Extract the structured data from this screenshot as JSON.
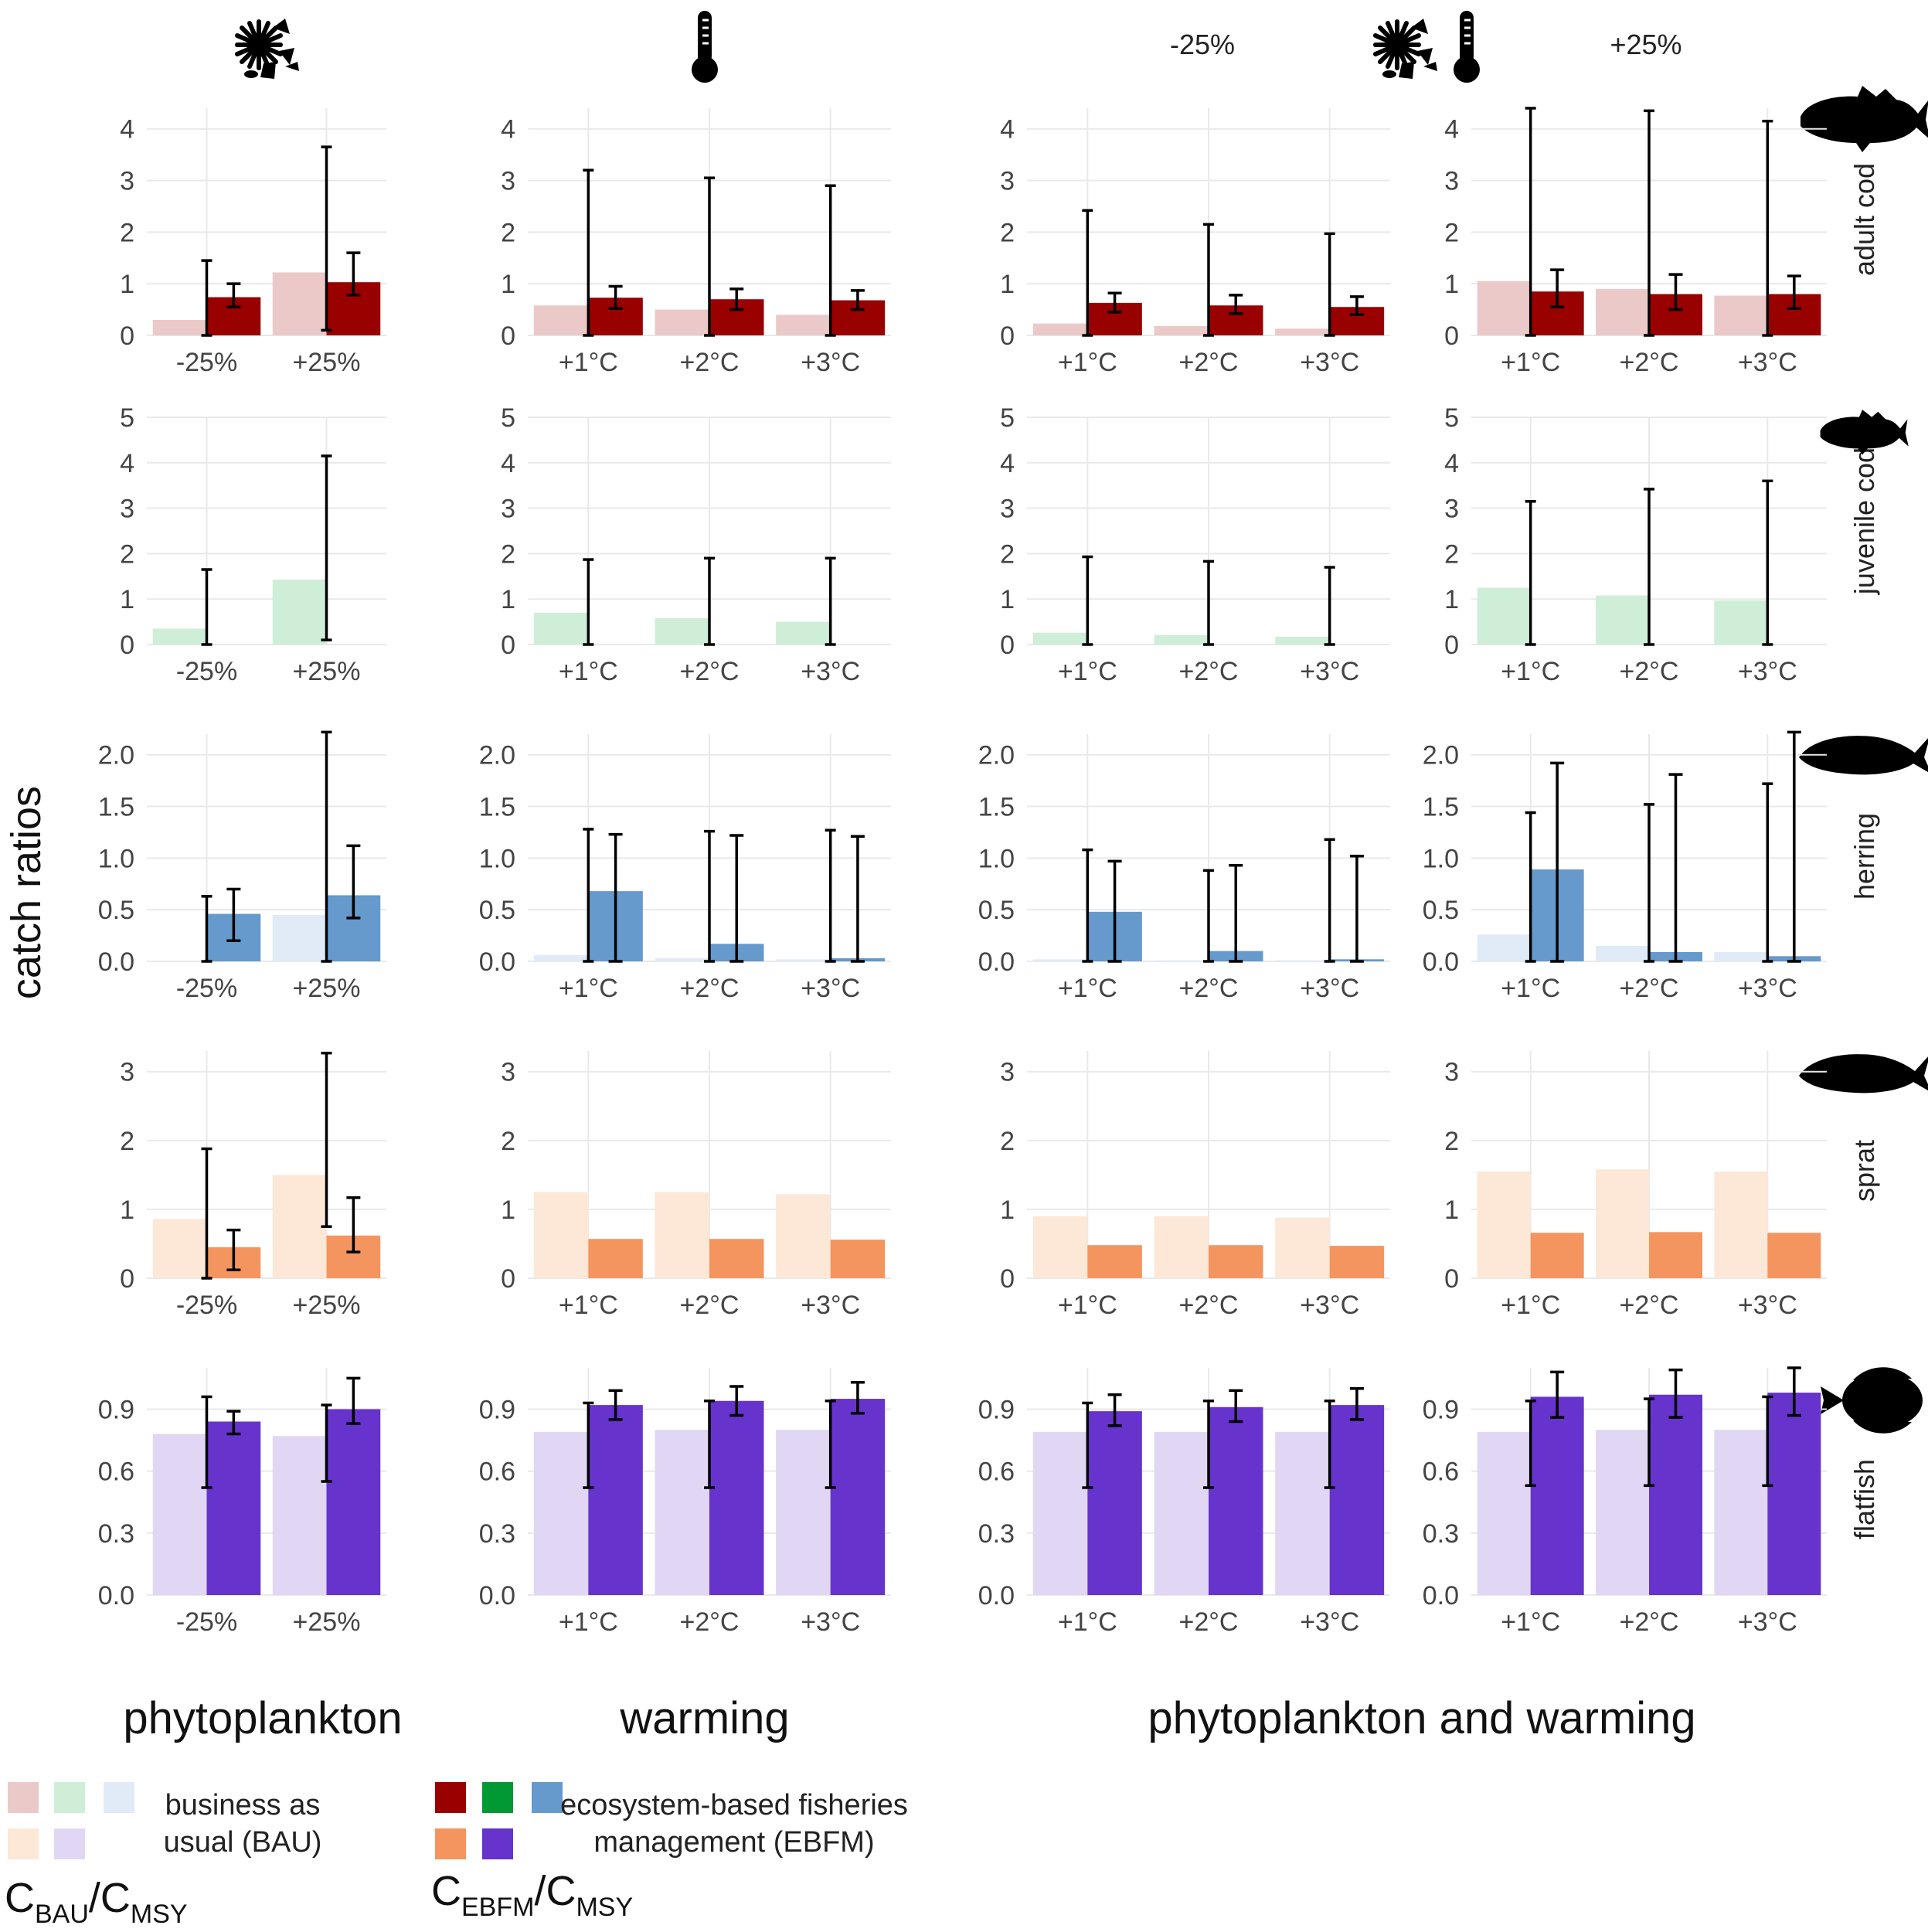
{
  "y_axis_label": "catch ratios",
  "top_labels": {
    "minus": "-25%",
    "plus": "+25%"
  },
  "icons": {
    "phytoplankton": "phytoplankton-icon",
    "warming": "thermometer-icon",
    "combined": [
      "phytoplankton-icon",
      "thermometer-icon"
    ]
  },
  "group_labels": [
    "phytoplankton",
    "warming",
    "phytoplankton and warming"
  ],
  "legend": {
    "bau_text": [
      "business as",
      "usual (BAU)"
    ],
    "ebfm_text": [
      "ecosystem-based fisheries",
      "management (EBFM)"
    ],
    "bau_ratio": {
      "c": "C",
      "sub1": "BAU",
      "slash": "/C",
      "sub2": "MSY"
    },
    "ebfm_ratio": {
      "c": "C",
      "sub1": "EBFM",
      "slash": "/C",
      "sub2": "MSY"
    },
    "bau_colors": [
      "#ecc9c9",
      "#cfeed8",
      "#e0ebf7",
      "#fde7d7",
      "#e1d7f4"
    ],
    "ebfm_colors": [
      "#990000",
      "#009933",
      "#6699cc",
      "#f4955f",
      "#6633cc"
    ]
  },
  "chart_data": {
    "type": "bar",
    "columns": [
      {
        "name": "phytoplankton",
        "categories": [
          "-25%",
          "+25%"
        ]
      },
      {
        "name": "warming",
        "categories": [
          "+1°C",
          "+2°C",
          "+3°C"
        ]
      },
      {
        "name": "phytoplankton and warming -25%",
        "categories": [
          "+1°C",
          "+2°C",
          "+3°C"
        ]
      },
      {
        "name": "phytoplankton and warming +25%",
        "categories": [
          "+1°C",
          "+2°C",
          "+3°C"
        ]
      }
    ],
    "rows": [
      {
        "species": "adult cod",
        "icon": "adult-cod-icon",
        "ylim": [
          0,
          4.4
        ],
        "ticks": [
          0,
          1,
          2,
          3,
          4
        ],
        "tick_labels": [
          "0",
          "1",
          "2",
          "3",
          "4"
        ],
        "bau_color": "#ecc9c9",
        "ebfm_color": "#990000",
        "panels": [
          {
            "bau": [
              0.3,
              1.22
            ],
            "bau_err": [
              [
                0,
                1.45
              ],
              [
                0.1,
                3.65
              ]
            ],
            "ebfm": [
              0.74,
              1.03
            ],
            "ebfm_err": [
              [
                0.55,
                1.0
              ],
              [
                0.78,
                1.6
              ]
            ]
          },
          {
            "bau": [
              0.58,
              0.5,
              0.4
            ],
            "bau_err": [
              [
                0,
                3.2
              ],
              [
                0,
                3.05
              ],
              [
                0,
                2.9
              ]
            ],
            "ebfm": [
              0.73,
              0.7,
              0.68
            ],
            "ebfm_err": [
              [
                0.52,
                0.95
              ],
              [
                0.5,
                0.9
              ],
              [
                0.5,
                0.87
              ]
            ]
          },
          {
            "bau": [
              0.23,
              0.18,
              0.13
            ],
            "bau_err": [
              [
                0,
                2.42
              ],
              [
                0,
                2.15
              ],
              [
                0,
                1.97
              ]
            ],
            "ebfm": [
              0.63,
              0.58,
              0.55
            ],
            "ebfm_err": [
              [
                0.45,
                0.82
              ],
              [
                0.42,
                0.78
              ],
              [
                0.4,
                0.75
              ]
            ]
          },
          {
            "bau": [
              1.05,
              0.9,
              0.77
            ],
            "bau_err": [
              [
                0,
                4.4
              ],
              [
                0,
                4.35
              ],
              [
                0,
                4.15
              ]
            ],
            "ebfm": [
              0.85,
              0.8,
              0.8
            ],
            "ebfm_err": [
              [
                0.55,
                1.27
              ],
              [
                0.5,
                1.18
              ],
              [
                0.52,
                1.15
              ]
            ]
          }
        ]
      },
      {
        "species": "juvenile cod",
        "icon": "juvenile-cod-icon",
        "ylim": [
          0,
          5.0
        ],
        "ticks": [
          0,
          1,
          2,
          3,
          4,
          5
        ],
        "tick_labels": [
          "0",
          "1",
          "2",
          "3",
          "4",
          "5"
        ],
        "bau_color": "#cfeed8",
        "ebfm_color": "#009933",
        "panels": [
          {
            "bau": [
              0.35,
              1.43
            ],
            "bau_err": [
              [
                0,
                1.65
              ],
              [
                0.1,
                4.15
              ]
            ],
            "ebfm": [
              0,
              0
            ],
            "ebfm_err": null
          },
          {
            "bau": [
              0.7,
              0.58,
              0.5
            ],
            "bau_err": [
              [
                0,
                1.87
              ],
              [
                0,
                1.9
              ],
              [
                0,
                1.9
              ]
            ],
            "ebfm": [
              0,
              0,
              0
            ],
            "ebfm_err": null
          },
          {
            "bau": [
              0.26,
              0.21,
              0.17
            ],
            "bau_err": [
              [
                0,
                1.93
              ],
              [
                0,
                1.83
              ],
              [
                0,
                1.7
              ]
            ],
            "ebfm": [
              0,
              0,
              0
            ],
            "ebfm_err": null
          },
          {
            "bau": [
              1.25,
              1.08,
              0.97
            ],
            "bau_err": [
              [
                0,
                3.15
              ],
              [
                0,
                3.42
              ],
              [
                0,
                3.6
              ]
            ],
            "ebfm": [
              0,
              0,
              0
            ],
            "ebfm_err": null
          }
        ]
      },
      {
        "species": "herring",
        "icon": "herring-icon",
        "ylim": [
          0,
          2.2
        ],
        "ticks": [
          0,
          0.5,
          1.0,
          1.5,
          2.0
        ],
        "tick_labels": [
          "0.0",
          "0.5",
          "1.0",
          "1.5",
          "2.0"
        ],
        "bau_color": "#e0ebf7",
        "ebfm_color": "#6699cc",
        "panels": [
          {
            "bau": [
              0.0,
              0.45
            ],
            "bau_err": [
              [
                0,
                0.63
              ],
              [
                0,
                2.22
              ]
            ],
            "ebfm": [
              0.46,
              0.64
            ],
            "ebfm_err": [
              [
                0.2,
                0.7
              ],
              [
                0.42,
                1.12
              ]
            ]
          },
          {
            "bau": [
              0.06,
              0.03,
              0.02
            ],
            "bau_err": [
              [
                0,
                1.28
              ],
              [
                0,
                1.26
              ],
              [
                0,
                1.27
              ]
            ],
            "ebfm": [
              0.68,
              0.17,
              0.03
            ],
            "ebfm_err": [
              [
                0,
                1.23
              ],
              [
                0,
                1.22
              ],
              [
                0,
                1.21
              ]
            ]
          },
          {
            "bau": [
              0.02,
              0.01,
              0.01
            ],
            "bau_err": [
              [
                0,
                1.08
              ],
              [
                0,
                0.88
              ],
              [
                0,
                1.18
              ]
            ],
            "ebfm": [
              0.48,
              0.1,
              0.02
            ],
            "ebfm_err": [
              [
                0,
                0.97
              ],
              [
                0,
                0.93
              ],
              [
                0,
                1.02
              ]
            ]
          },
          {
            "bau": [
              0.26,
              0.15,
              0.09
            ],
            "bau_err": [
              [
                0,
                1.44
              ],
              [
                0,
                1.52
              ],
              [
                0,
                1.72
              ]
            ],
            "ebfm": [
              0.89,
              0.09,
              0.05
            ],
            "ebfm_err": [
              [
                0,
                1.92
              ],
              [
                0,
                1.81
              ],
              [
                0,
                2.22
              ]
            ]
          }
        ]
      },
      {
        "species": "sprat",
        "icon": "sprat-icon",
        "ylim": [
          0,
          3.3
        ],
        "ticks": [
          0,
          1,
          2,
          3
        ],
        "tick_labels": [
          "0",
          "1",
          "2",
          "3"
        ],
        "bau_color": "#fde7d7",
        "ebfm_color": "#f4955f",
        "panels": [
          {
            "bau": [
              0.86,
              1.5
            ],
            "bau_err": [
              [
                0,
                1.88
              ],
              [
                0.75,
                3.27
              ]
            ],
            "ebfm": [
              0.45,
              0.62
            ],
            "ebfm_err": [
              [
                0.12,
                0.7
              ],
              [
                0.38,
                1.17
              ]
            ]
          },
          {
            "bau": [
              1.25,
              1.25,
              1.22
            ],
            "bau_err": null,
            "ebfm": [
              0.57,
              0.57,
              0.56
            ],
            "ebfm_err": null
          },
          {
            "bau": [
              0.9,
              0.9,
              0.88
            ],
            "bau_err": null,
            "ebfm": [
              0.48,
              0.48,
              0.47
            ],
            "ebfm_err": null
          },
          {
            "bau": [
              1.55,
              1.58,
              1.55
            ],
            "bau_err": null,
            "ebfm": [
              0.66,
              0.67,
              0.66
            ],
            "ebfm_err": null
          }
        ]
      },
      {
        "species": "flatfish",
        "icon": "flatfish-icon",
        "ylim": [
          0,
          1.1
        ],
        "ticks": [
          0,
          0.3,
          0.6,
          0.9
        ],
        "tick_labels": [
          "0.0",
          "0.3",
          "0.6",
          "0.9"
        ],
        "bau_color": "#e1d7f4",
        "ebfm_color": "#6633cc",
        "panels": [
          {
            "bau": [
              0.78,
              0.77
            ],
            "bau_err": [
              [
                0.52,
                0.96
              ],
              [
                0.55,
                0.92
              ]
            ],
            "ebfm": [
              0.84,
              0.9
            ],
            "ebfm_err": [
              [
                0.78,
                0.89
              ],
              [
                0.83,
                1.05
              ]
            ]
          },
          {
            "bau": [
              0.79,
              0.8,
              0.8
            ],
            "bau_err": [
              [
                0.52,
                0.93
              ],
              [
                0.52,
                0.94
              ],
              [
                0.52,
                0.94
              ]
            ],
            "ebfm": [
              0.92,
              0.94,
              0.95
            ],
            "ebfm_err": [
              [
                0.85,
                0.99
              ],
              [
                0.87,
                1.01
              ],
              [
                0.88,
                1.03
              ]
            ]
          },
          {
            "bau": [
              0.79,
              0.79,
              0.79
            ],
            "bau_err": [
              [
                0.52,
                0.93
              ],
              [
                0.52,
                0.94
              ],
              [
                0.52,
                0.94
              ]
            ],
            "ebfm": [
              0.89,
              0.91,
              0.92
            ],
            "ebfm_err": [
              [
                0.82,
                0.97
              ],
              [
                0.84,
                0.99
              ],
              [
                0.85,
                1.0
              ]
            ]
          },
          {
            "bau": [
              0.79,
              0.8,
              0.8
            ],
            "bau_err": [
              [
                0.53,
                0.94
              ],
              [
                0.53,
                0.95
              ],
              [
                0.53,
                0.96
              ]
            ],
            "ebfm": [
              0.96,
              0.97,
              0.98
            ],
            "ebfm_err": [
              [
                0.86,
                1.08
              ],
              [
                0.86,
                1.09
              ],
              [
                0.87,
                1.1
              ]
            ]
          }
        ]
      }
    ]
  }
}
